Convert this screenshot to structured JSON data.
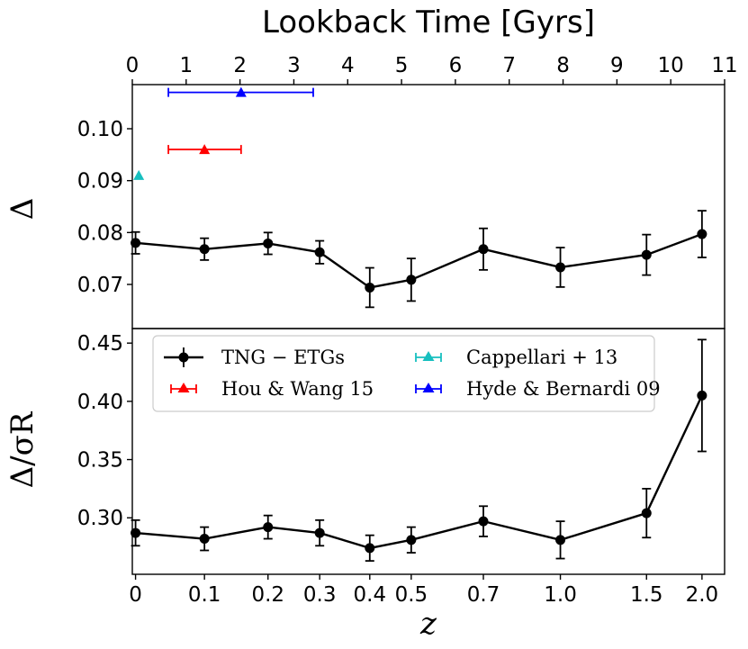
{
  "chart_data": {
    "type": "line",
    "top_axis": {
      "label": "Lookback Time [Gyrs]",
      "ticks": [
        0,
        1,
        2,
        3,
        4,
        5,
        6,
        7,
        8,
        9,
        10,
        11
      ],
      "range": [
        0,
        11
      ]
    },
    "x_positions": [
      0,
      0.1,
      0.2,
      0.3,
      0.4,
      0.5,
      0.7,
      1.0,
      1.5,
      2.0
    ],
    "x_positions_in_lookback_gyr": [
      0.06,
      1.34,
      2.52,
      3.48,
      4.41,
      5.18,
      6.52,
      7.95,
      9.55,
      10.58
    ],
    "xlabel": "z",
    "xtick_labels": [
      "0",
      "0.1",
      "0.2",
      "0.3",
      "0.4",
      "0.5",
      "0.7",
      "1.0",
      "1.5",
      "2.0"
    ],
    "panels": [
      {
        "ylabel": "Δ",
        "ylim": [
          0.0615,
          0.1085
        ],
        "yticks": [
          "0.07",
          "0.08",
          "0.09",
          "0.10"
        ],
        "ytick_values": [
          0.07,
          0.08,
          0.09,
          0.1
        ],
        "series": [
          {
            "name": "TNG − ETGs",
            "color": "#000000",
            "values": [
              0.078,
              0.0768,
              0.0779,
              0.0762,
              0.0694,
              0.0709,
              0.0768,
              0.0733,
              0.0757,
              0.0797
            ],
            "errors": [
              0.0021,
              0.0021,
              0.0021,
              0.0022,
              0.0038,
              0.0041,
              0.004,
              0.0038,
              0.0039,
              0.0045
            ]
          }
        ],
        "observations": [
          {
            "name": "Cappellari + 13",
            "color": "#17bfbf",
            "lookback": 0.12,
            "value": 0.091,
            "xerr": null
          },
          {
            "name": "Hou & Wang 15",
            "color": "#ff0000",
            "lookback": 1.34,
            "value": 0.096,
            "xerr": [
              0.67,
              2.02
            ]
          },
          {
            "name": "Hyde & Bernardi 09",
            "color": "#0000ff",
            "lookback": 2.02,
            "value": 0.107,
            "xerr": [
              0.67,
              3.36
            ]
          }
        ]
      },
      {
        "ylabel": "Δ/σR",
        "ylim": [
          0.2515,
          0.4625
        ],
        "yticks": [
          "0.30",
          "0.35",
          "0.40",
          "0.45"
        ],
        "ytick_values": [
          0.3,
          0.35,
          0.4,
          0.45
        ],
        "series": [
          {
            "name": "TNG − ETGs",
            "color": "#000000",
            "values": [
              0.287,
              0.282,
              0.292,
              0.287,
              0.274,
              0.281,
              0.297,
              0.281,
              0.304,
              0.405
            ],
            "errors": [
              0.011,
              0.01,
              0.01,
              0.011,
              0.011,
              0.011,
              0.013,
              0.016,
              0.021,
              0.048
            ]
          }
        ]
      }
    ],
    "legend": {
      "placement": "top-left of lower panel",
      "entries": [
        {
          "label": "TNG − ETGs",
          "color": "#000000",
          "style": "line-marker"
        },
        {
          "label": "Cappellari + 13",
          "color": "#17bfbf",
          "style": "triangle"
        },
        {
          "label": "Hou & Wang 15",
          "color": "#ff0000",
          "style": "triangle"
        },
        {
          "label": "Hyde & Bernardi 09",
          "color": "#0000ff",
          "style": "triangle"
        }
      ]
    }
  }
}
